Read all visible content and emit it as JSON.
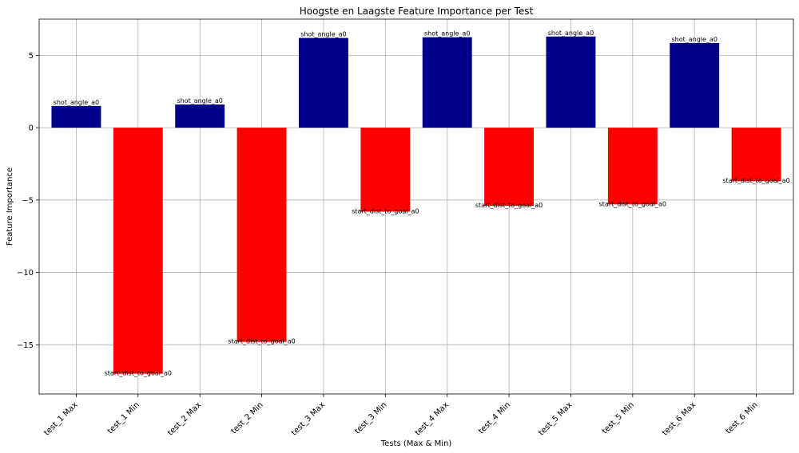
{
  "chart_data": {
    "type": "bar",
    "title": "Hoogste en Laagste Feature Importance per Test",
    "xlabel": "Tests (Max & Min)",
    "ylabel": "Feature Importance",
    "ylim": [
      -18.4,
      7.5
    ],
    "yticks": [
      5,
      0,
      -5,
      -10,
      -15
    ],
    "ytick_labels": [
      "5",
      "0",
      "−5",
      "−10",
      "−15"
    ],
    "grid": true,
    "colors": {
      "max": "#00008b",
      "min": "#ff0000"
    },
    "categories": [
      "test_1 Max",
      "test_1 Min",
      "test_2 Max",
      "test_2 Min",
      "test_3 Max",
      "test_3 Min",
      "test_4 Max",
      "test_4 Min",
      "test_5 Max",
      "test_5 Min",
      "test_6 Max",
      "test_6 Min"
    ],
    "values": [
      1.5,
      -17.0,
      1.6,
      -14.8,
      6.2,
      -5.8,
      6.25,
      -5.4,
      6.3,
      -5.3,
      5.85,
      -3.7
    ],
    "kinds": [
      "max",
      "min",
      "max",
      "min",
      "max",
      "min",
      "max",
      "min",
      "max",
      "min",
      "max",
      "min"
    ],
    "labels": [
      "shot_angle_a0",
      "start_dist_to_goal_a0",
      "shot_angle_a0",
      "start_dist_to_goal_a0",
      "shot_angle_a0",
      "start_dist_to_goal_a0",
      "shot_angle_a0",
      "start_dist_to_goal_a0",
      "shot_angle_a0",
      "start_dist_to_goal_a0",
      "shot_angle_a0",
      "start_dist_to_goal_a0"
    ]
  }
}
